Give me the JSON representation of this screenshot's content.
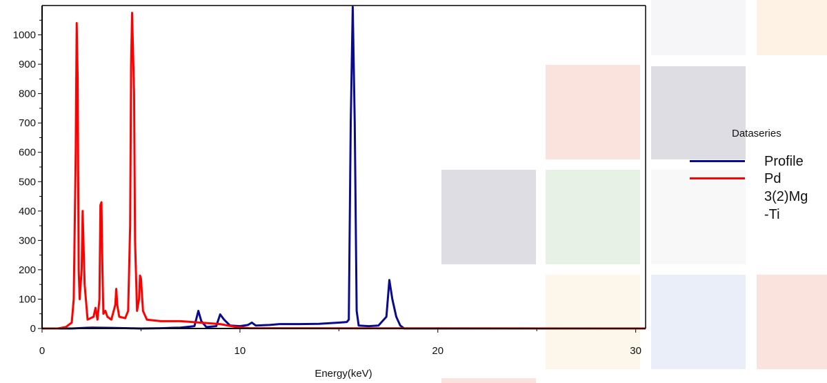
{
  "chart_data": {
    "type": "line",
    "title": "",
    "xlabel": "Energy(keV)",
    "ylabel": "",
    "xlim": [
      0,
      30.5
    ],
    "ylim": [
      0,
      1100
    ],
    "x_ticks": [
      "0",
      "10",
      "20",
      "30"
    ],
    "y_ticks": [
      "0",
      "100",
      "200",
      "300",
      "400",
      "500",
      "600",
      "700",
      "800",
      "900",
      "1000"
    ],
    "legend": {
      "title": "Dataseries",
      "position": "right"
    },
    "series": [
      {
        "name": "Profile",
        "color": "#0a0a8c",
        "points": [
          [
            0,
            0
          ],
          [
            1.5,
            0
          ],
          [
            2.5,
            3
          ],
          [
            3.5,
            2
          ],
          [
            5,
            0
          ],
          [
            6,
            1
          ],
          [
            7,
            3
          ],
          [
            7.7,
            8
          ],
          [
            7.9,
            60
          ],
          [
            8.05,
            25
          ],
          [
            8.3,
            5
          ],
          [
            8.8,
            8
          ],
          [
            9.0,
            48
          ],
          [
            9.2,
            30
          ],
          [
            9.5,
            10
          ],
          [
            10,
            8
          ],
          [
            10.4,
            12
          ],
          [
            10.6,
            20
          ],
          [
            10.8,
            10
          ],
          [
            11.5,
            12
          ],
          [
            12,
            15
          ],
          [
            13,
            15
          ],
          [
            14,
            16
          ],
          [
            15,
            20
          ],
          [
            15.4,
            22
          ],
          [
            15.5,
            30
          ],
          [
            15.6,
            700
          ],
          [
            15.7,
            1095
          ],
          [
            15.8,
            700
          ],
          [
            15.9,
            60
          ],
          [
            16,
            10
          ],
          [
            16.5,
            8
          ],
          [
            17,
            10
          ],
          [
            17.4,
            40
          ],
          [
            17.55,
            165
          ],
          [
            17.7,
            100
          ],
          [
            17.9,
            40
          ],
          [
            18.1,
            10
          ],
          [
            18.3,
            0
          ],
          [
            30.5,
            0
          ]
        ]
      },
      {
        "name": "Pd\n3(2)Mg\n-Ti",
        "color": "#ff0000",
        "points": [
          [
            0,
            0
          ],
          [
            0.8,
            0
          ],
          [
            1.2,
            5
          ],
          [
            1.5,
            20
          ],
          [
            1.6,
            100
          ],
          [
            1.7,
            600
          ],
          [
            1.75,
            1040
          ],
          [
            1.8,
            850
          ],
          [
            1.85,
            200
          ],
          [
            1.9,
            100
          ],
          [
            2.0,
            200
          ],
          [
            2.05,
            400
          ],
          [
            2.15,
            150
          ],
          [
            2.3,
            30
          ],
          [
            2.6,
            40
          ],
          [
            2.7,
            70
          ],
          [
            2.8,
            30
          ],
          [
            2.9,
            100
          ],
          [
            2.95,
            420
          ],
          [
            3.0,
            430
          ],
          [
            3.05,
            200
          ],
          [
            3.1,
            50
          ],
          [
            3.2,
            60
          ],
          [
            3.3,
            40
          ],
          [
            3.5,
            30
          ],
          [
            3.7,
            80
          ],
          [
            3.75,
            135
          ],
          [
            3.8,
            80
          ],
          [
            3.9,
            40
          ],
          [
            4.2,
            35
          ],
          [
            4.35,
            60
          ],
          [
            4.45,
            350
          ],
          [
            4.5,
            900
          ],
          [
            4.55,
            1075
          ],
          [
            4.65,
            800
          ],
          [
            4.7,
            300
          ],
          [
            4.8,
            60
          ],
          [
            4.9,
            100
          ],
          [
            4.95,
            180
          ],
          [
            5.0,
            170
          ],
          [
            5.1,
            60
          ],
          [
            5.3,
            30
          ],
          [
            6.0,
            25
          ],
          [
            7.0,
            25
          ],
          [
            8.0,
            20
          ],
          [
            9.0,
            15
          ],
          [
            9.8,
            5
          ],
          [
            10.5,
            1
          ],
          [
            30.5,
            0
          ]
        ]
      }
    ]
  },
  "colors": {
    "axis": "#000000",
    "tiles": [
      "#fdf2e4",
      "#f6f6f8",
      "#fbe3dd",
      "#dedde4",
      "#e7f1e6",
      "#f8f8f8",
      "#fdf6ea",
      "#e9eef9",
      "#fbe3dd"
    ]
  }
}
